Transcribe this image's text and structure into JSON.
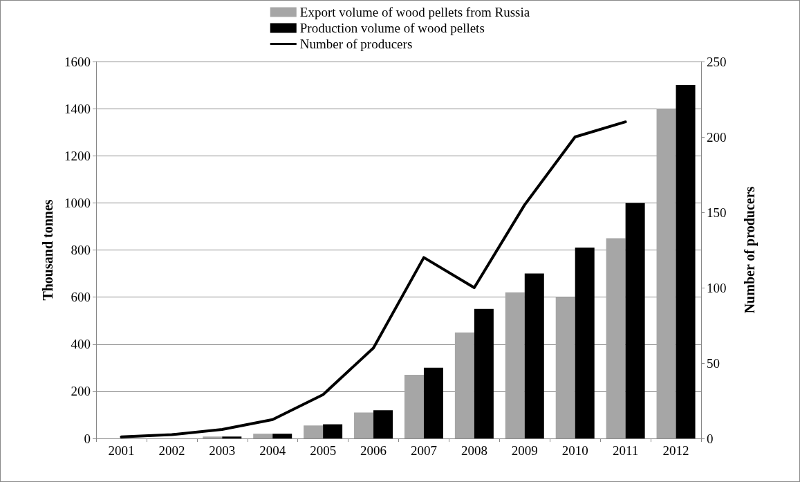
{
  "chart_data": {
    "type": "bar",
    "categories": [
      "2001",
      "2002",
      "2003",
      "2004",
      "2005",
      "2006",
      "2007",
      "2008",
      "2009",
      "2010",
      "2011",
      "2012"
    ],
    "ylabel": "Thousand tonnes",
    "y2label": "Number of producers",
    "ylim": [
      0,
      1600
    ],
    "yticks": [
      0,
      200,
      400,
      600,
      800,
      1000,
      1200,
      1400,
      1600
    ],
    "y2lim": [
      0,
      250
    ],
    "y2ticks": [
      0,
      50,
      100,
      150,
      200,
      250
    ],
    "grid": "y",
    "legend": "top",
    "series": [
      {
        "name": "Export volume of wood pellets from Russia",
        "color": "#a6a6a6",
        "values": [
          0,
          0,
          8,
          20,
          55,
          110,
          270,
          450,
          620,
          600,
          850,
          1400
        ]
      },
      {
        "name": "Production volume of wood pellets",
        "color": "#000000",
        "values": [
          0,
          0,
          8,
          20,
          60,
          120,
          300,
          550,
          700,
          810,
          1000,
          1500
        ]
      },
      {
        "name": "Number of producers",
        "type": "line",
        "axis": "y2",
        "color": "#000000",
        "marker": "none",
        "values": [
          1,
          2.5,
          6,
          12.5,
          29,
          60,
          120,
          100,
          155,
          200,
          210,
          null
        ]
      }
    ]
  }
}
